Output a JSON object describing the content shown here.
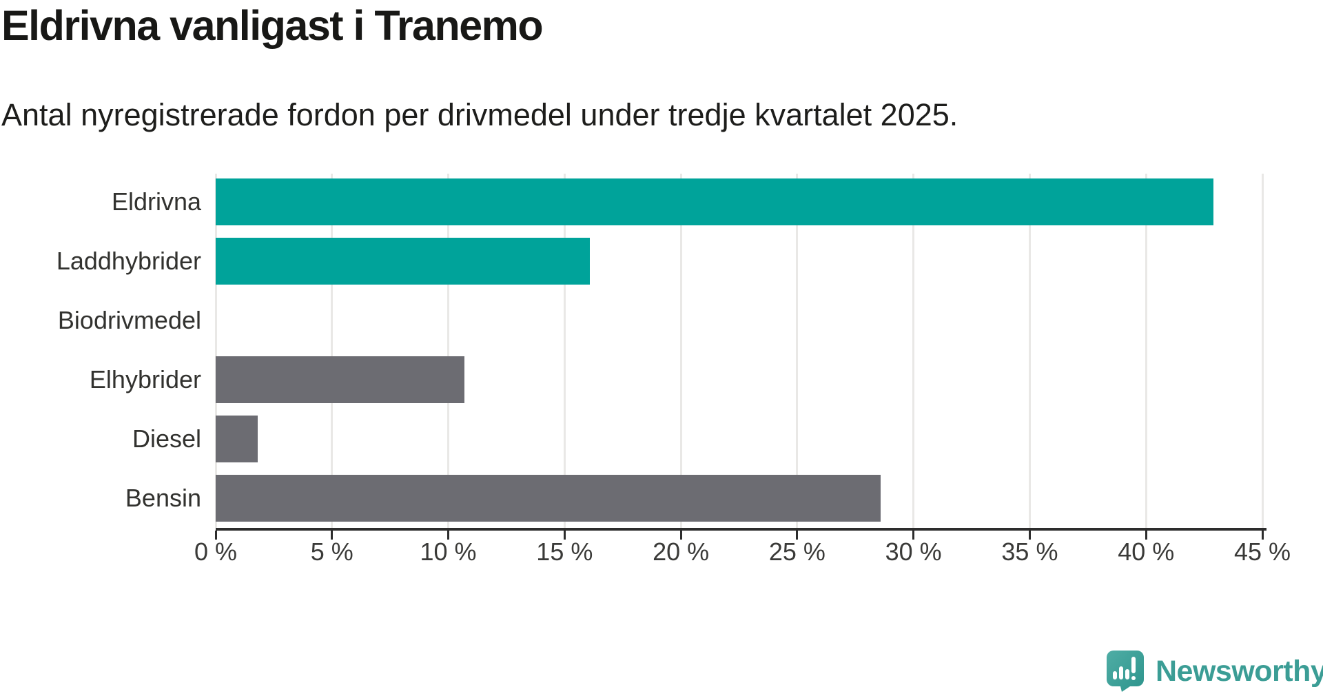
{
  "header": {
    "title": "Eldrivna vanligast i Tranemo",
    "subtitle": "Antal nyregistrerade fordon per drivmedel under tredje kvartalet 2025."
  },
  "chart_data": {
    "type": "bar",
    "orientation": "horizontal",
    "title": "Eldrivna vanligast i Tranemo",
    "subtitle": "Antal nyregistrerade fordon per drivmedel under tredje kvartalet 2025.",
    "categories": [
      "Eldrivna",
      "Laddhybrider",
      "Biodrivmedel",
      "Elhybrider",
      "Diesel",
      "Bensin"
    ],
    "values": [
      42.9,
      16.1,
      0,
      10.7,
      1.8,
      28.6
    ],
    "value_unit": "%",
    "bar_colors": [
      "#00A39A",
      "#00A39A",
      "#6C6C72",
      "#6C6C72",
      "#6C6C72",
      "#6C6C72"
    ],
    "highlight_color": "#00A39A",
    "default_color": "#6C6C72",
    "xlim": [
      0,
      45
    ],
    "xticks": [
      0,
      5,
      10,
      15,
      20,
      25,
      30,
      35,
      40,
      45
    ],
    "xtick_labels": [
      "0 %",
      "5 %",
      "10 %",
      "15 %",
      "20 %",
      "25 %",
      "30 %",
      "35 %",
      "40 %",
      "45 %"
    ],
    "xlabel": "",
    "ylabel": "",
    "grid": "vertical",
    "legend": "none",
    "gridline_color": "#E9E8E6",
    "axis_color": "#2D2D2D",
    "background_color": "#FFFFFF"
  },
  "branding": {
    "name": "Newsworthy",
    "icon": "newsworthy-pin-icon",
    "color": "#3B9D95"
  }
}
